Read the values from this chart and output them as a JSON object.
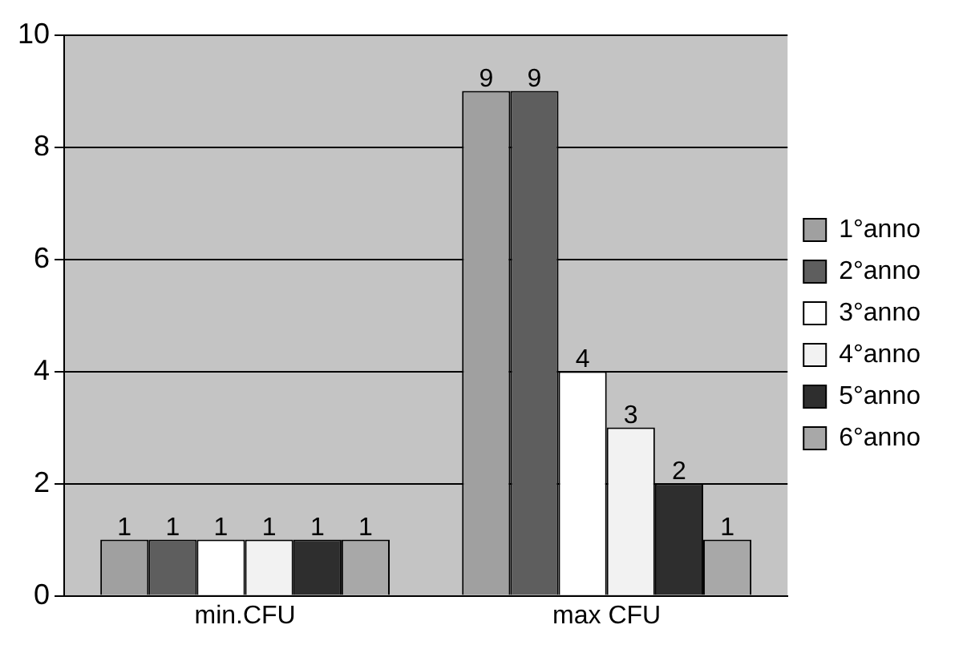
{
  "chart_data": {
    "type": "bar",
    "categories": [
      "min.CFU",
      "max CFU"
    ],
    "series": [
      {
        "name": "1°anno",
        "color": "#a0a0a0",
        "values": [
          1,
          9
        ]
      },
      {
        "name": "2°anno",
        "color": "#5e5e5e",
        "values": [
          1,
          9
        ]
      },
      {
        "name": "3°anno",
        "color": "#ffffff",
        "values": [
          1,
          4
        ]
      },
      {
        "name": "4°anno",
        "color": "#f2f2f2",
        "values": [
          1,
          3
        ]
      },
      {
        "name": "5°anno",
        "color": "#2e2e2e",
        "values": [
          1,
          2
        ]
      },
      {
        "name": "6°anno",
        "color": "#a8a8a8",
        "values": [
          1,
          1
        ]
      }
    ],
    "ylim": [
      0,
      10
    ],
    "yticks": [
      0,
      2,
      4,
      6,
      8,
      10
    ],
    "grid": "y",
    "legend": "right",
    "data_labels": true
  }
}
